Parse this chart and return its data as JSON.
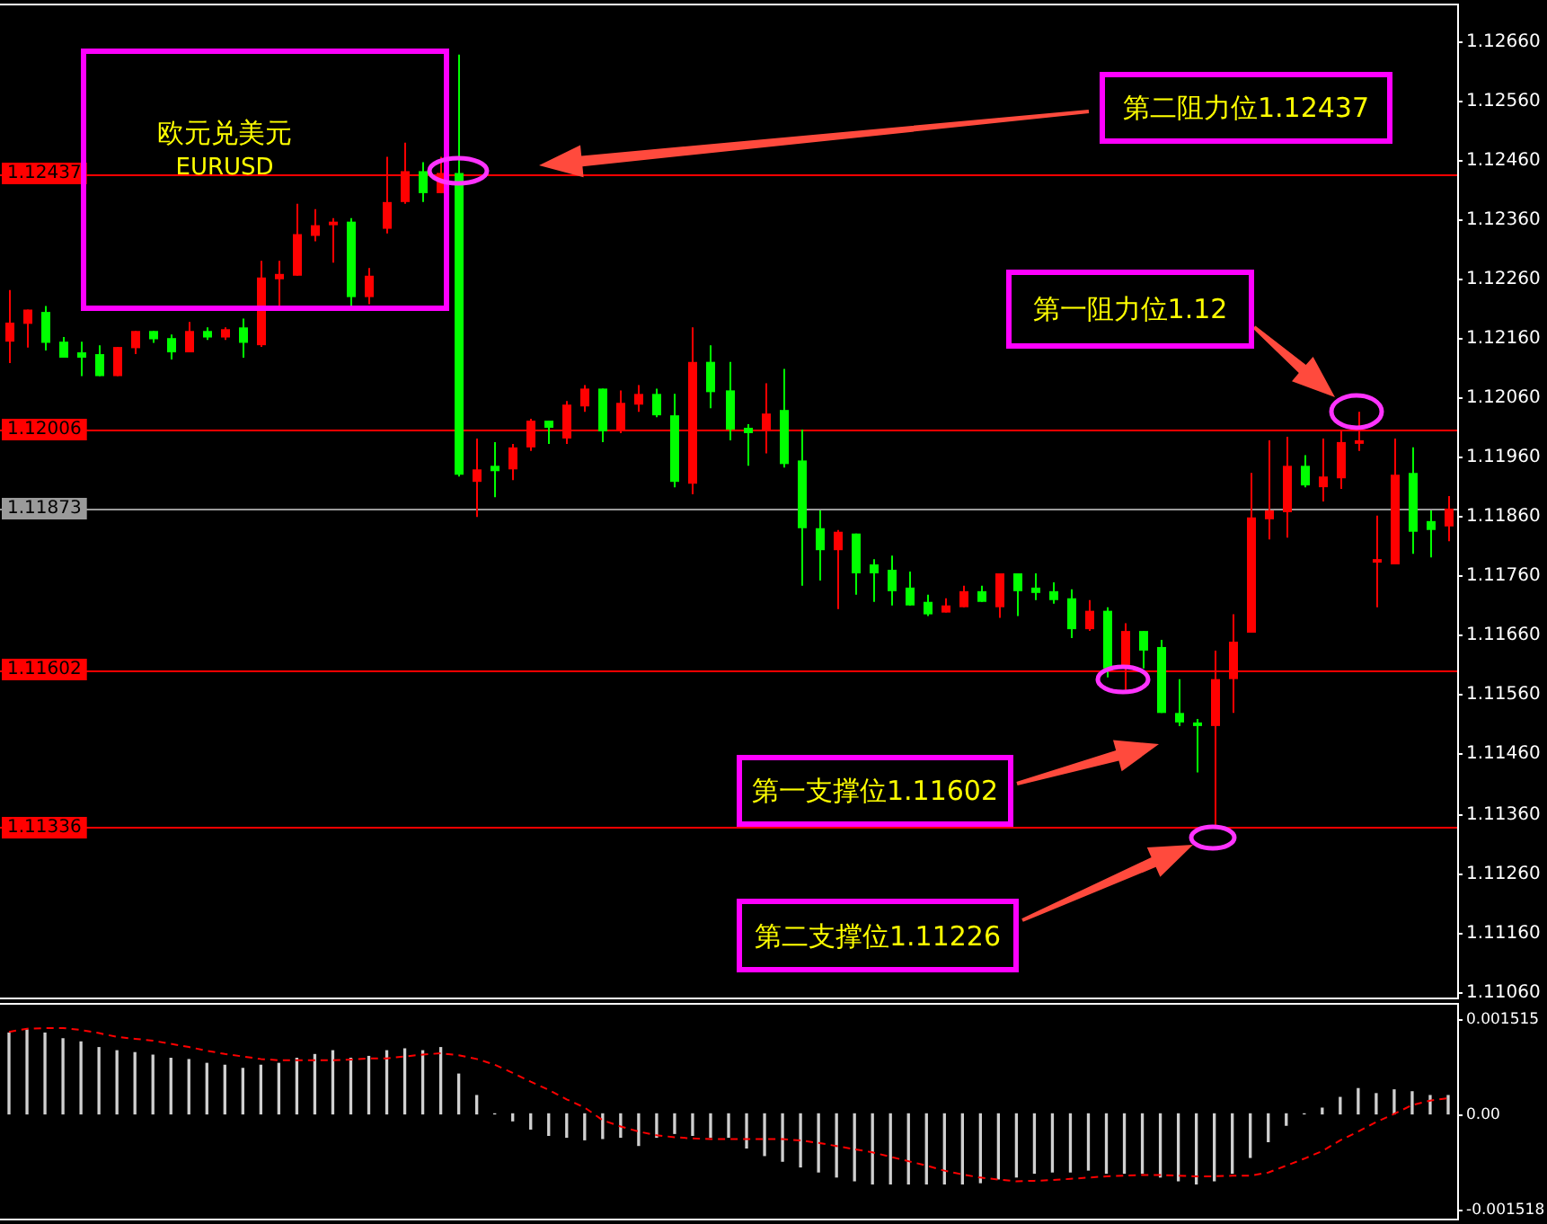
{
  "chart_data": [
    {
      "type": "candlestick",
      "title": "欧元兑美元",
      "subtitle": "EURUSD",
      "categories": [
        null,
        null,
        null,
        null,
        null,
        null,
        null,
        null,
        null,
        null,
        null,
        null,
        null,
        null,
        null,
        null,
        null,
        null,
        null,
        null,
        null,
        null,
        null,
        null,
        null,
        null,
        null,
        null,
        null,
        null,
        null,
        null,
        null,
        null,
        null,
        null,
        null,
        null,
        null,
        null,
        null,
        null,
        null,
        null,
        null,
        null,
        null,
        null,
        null,
        null,
        null,
        null,
        null,
        null,
        null,
        null,
        null,
        null,
        null,
        null,
        null,
        null,
        null,
        null,
        null,
        null,
        null,
        null,
        null,
        null,
        null,
        null,
        null,
        null,
        null,
        null,
        null,
        null,
        null,
        null,
        null
      ],
      "ohlc": [
        [
          1.12154,
          1.12241,
          1.12118,
          1.12186
        ],
        [
          1.12184,
          1.12208,
          1.12144,
          1.12208
        ],
        [
          1.12204,
          1.12214,
          1.12139,
          1.12152
        ],
        [
          1.12154,
          1.12162,
          1.12127,
          1.12127
        ],
        [
          1.12136,
          1.12154,
          1.12096,
          1.12127
        ],
        [
          1.12133,
          1.12148,
          1.12096,
          1.12096
        ],
        [
          1.12096,
          1.12145,
          1.12096,
          1.12145
        ],
        [
          1.12143,
          1.12172,
          1.12133,
          1.12172
        ],
        [
          1.12172,
          1.12172,
          1.12152,
          1.12158
        ],
        [
          1.1216,
          1.12166,
          1.12124,
          1.12136
        ],
        [
          1.12136,
          1.12187,
          1.12136,
          1.12172
        ],
        [
          1.12172,
          1.12178,
          1.12157,
          1.12161
        ],
        [
          1.12161,
          1.12178,
          1.12157,
          1.12175
        ],
        [
          1.12178,
          1.12193,
          1.12127,
          1.12152
        ],
        [
          1.12148,
          1.1229,
          1.12145,
          1.12262
        ],
        [
          1.12259,
          1.1229,
          1.12214,
          1.12268
        ],
        [
          1.12265,
          1.12386,
          1.12265,
          1.12335
        ],
        [
          1.12332,
          1.12377,
          1.12323,
          1.1235
        ],
        [
          1.1235,
          1.12362,
          1.12287,
          1.12356
        ],
        [
          1.12356,
          1.12362,
          1.12209,
          1.12229
        ],
        [
          1.12229,
          1.12278,
          1.12217,
          1.12265
        ],
        [
          1.12344,
          1.12465,
          1.12336,
          1.12389
        ],
        [
          1.12389,
          1.12489,
          1.12386,
          1.12441
        ],
        [
          1.12441,
          1.12456,
          1.12389,
          1.12404
        ],
        [
          1.12404,
          1.12465,
          1.12404,
          1.12438
        ],
        [
          1.12438,
          1.12637,
          1.11927,
          1.1193
        ],
        [
          1.11918,
          1.11991,
          1.11859,
          1.11939
        ],
        [
          1.11945,
          1.11985,
          1.11892,
          1.11936
        ],
        [
          1.11939,
          1.11982,
          1.11921,
          1.11976
        ],
        [
          1.11976,
          1.12024,
          1.1197,
          1.12021
        ],
        [
          1.12021,
          1.12021,
          1.11982,
          1.12009
        ],
        [
          1.11991,
          1.12054,
          1.11982,
          1.12048
        ],
        [
          1.12045,
          1.12081,
          1.12036,
          1.12075
        ],
        [
          1.12075,
          1.12075,
          1.11985,
          1.12003
        ],
        [
          1.12003,
          1.12072,
          1.12,
          1.12051
        ],
        [
          1.12048,
          1.12081,
          1.12036,
          1.12066
        ],
        [
          1.12066,
          1.12075,
          1.12027,
          1.1203
        ],
        [
          1.1203,
          1.12066,
          1.11909,
          1.11918
        ],
        [
          1.11915,
          1.12178,
          1.11897,
          1.1212
        ],
        [
          1.1212,
          1.12148,
          1.12042,
          1.12069
        ],
        [
          1.12072,
          1.1212,
          1.11988,
          1.12006
        ],
        [
          1.12009,
          1.12015,
          1.11945,
          1.12
        ],
        [
          1.12003,
          1.12084,
          1.11966,
          1.12033
        ],
        [
          1.12039,
          1.12108,
          1.11942,
          1.11948
        ],
        [
          1.11954,
          1.12006,
          1.11743,
          1.1184
        ],
        [
          1.1184,
          1.1187,
          1.11752,
          1.11803
        ],
        [
          1.11803,
          1.11837,
          1.11704,
          1.11834
        ],
        [
          1.11831,
          1.11831,
          1.11728,
          1.11764
        ],
        [
          1.11779,
          1.11788,
          1.11716,
          1.11764
        ],
        [
          1.1177,
          1.11794,
          1.1171,
          1.11734
        ],
        [
          1.1174,
          1.11767,
          1.1171,
          1.1171
        ],
        [
          1.11716,
          1.11728,
          1.11692,
          1.11695
        ],
        [
          1.11698,
          1.11722,
          1.11698,
          1.1171
        ],
        [
          1.11707,
          1.11743,
          1.11707,
          1.11734
        ],
        [
          1.11734,
          1.11743,
          1.11716,
          1.11716
        ],
        [
          1.11707,
          1.11764,
          1.11689,
          1.11764
        ],
        [
          1.11764,
          1.11764,
          1.11692,
          1.11734
        ],
        [
          1.1174,
          1.11764,
          1.11719,
          1.11731
        ],
        [
          1.11734,
          1.11749,
          1.11713,
          1.11719
        ],
        [
          1.11722,
          1.11737,
          1.11655,
          1.1167
        ],
        [
          1.1167,
          1.11719,
          1.11667,
          1.11701
        ],
        [
          1.11701,
          1.11707,
          1.11589,
          1.11604
        ],
        [
          1.11607,
          1.1168,
          1.11568,
          1.11667
        ],
        [
          1.11667,
          1.11667,
          1.11604,
          1.11634
        ],
        [
          1.1164,
          1.11652,
          1.11529,
          1.11529
        ],
        [
          1.11529,
          1.11586,
          1.11507,
          1.11513
        ],
        [
          1.11513,
          1.11519,
          1.11429,
          1.11507
        ],
        [
          1.11507,
          1.11634,
          1.11338,
          1.11586
        ],
        [
          1.11586,
          1.11695,
          1.11529,
          1.11649
        ],
        [
          1.11664,
          1.11933,
          1.11664,
          1.11858
        ],
        [
          1.11855,
          1.11988,
          1.11821,
          1.1187
        ],
        [
          1.11867,
          1.11994,
          1.11824,
          1.11945
        ],
        [
          1.11945,
          1.11963,
          1.11909,
          1.11912
        ],
        [
          1.11909,
          1.11991,
          1.11885,
          1.11927
        ],
        [
          1.11924,
          1.12003,
          1.11906,
          1.11985
        ],
        [
          1.11982,
          1.12036,
          1.1197,
          1.11988
        ],
        [
          1.11782,
          1.11861,
          1.11707,
          1.11788
        ],
        [
          1.11779,
          1.11991,
          1.11779,
          1.1193
        ],
        [
          1.11933,
          1.11976,
          1.11797,
          1.11834
        ],
        [
          1.11852,
          1.1187,
          1.11791,
          1.11837
        ],
        [
          1.11843,
          1.11894,
          1.11818,
          1.11873
        ]
      ],
      "colors": [
        "#ff0000",
        "#ff0000",
        "#00ff00",
        "#00ff00",
        "#00ff00",
        "#00ff00",
        "#ff0000",
        "#ff0000",
        "#00ff00",
        "#00ff00",
        "#ff0000",
        "#00ff00",
        "#ff0000",
        "#00ff00",
        "#ff0000",
        "#ff0000",
        "#ff0000",
        "#ff0000",
        "#ff0000",
        "#00ff00",
        "#ff0000",
        "#ff0000",
        "#ff0000",
        "#00ff00",
        "#ff0000",
        "#00ff00",
        "#ff0000",
        "#00ff00",
        "#ff0000",
        "#ff0000",
        "#00ff00",
        "#ff0000",
        "#ff0000",
        "#00ff00",
        "#ff0000",
        "#ff0000",
        "#00ff00",
        "#00ff00",
        "#ff0000",
        "#00ff00",
        "#00ff00",
        "#00ff00",
        "#ff0000",
        "#00ff00",
        "#00ff00",
        "#00ff00",
        "#ff0000",
        "#00ff00",
        "#00ff00",
        "#00ff00",
        "#00ff00",
        "#00ff00",
        "#ff0000",
        "#ff0000",
        "#00ff00",
        "#ff0000",
        "#00ff00",
        "#00ff00",
        "#00ff00",
        "#00ff00",
        "#ff0000",
        "#00ff00",
        "#ff0000",
        "#00ff00",
        "#00ff00",
        "#00ff00",
        "#00ff00",
        "#ff0000",
        "#ff0000",
        "#ff0000",
        "#ff0000",
        "#ff0000",
        "#00ff00",
        "#ff0000",
        "#ff0000",
        "#ff0000",
        "#ff0000",
        "#ff0000",
        "#00ff00",
        "#00ff00",
        "#ff0000"
      ],
      "ylim": [
        1.1105,
        1.1272
      ],
      "yticks": [
        {
          "value": 1.1106,
          "label": "1.11060"
        },
        {
          "value": 1.1116,
          "label": "1.11160"
        },
        {
          "value": 1.1126,
          "label": "1.11260"
        },
        {
          "value": 1.1136,
          "label": "1.11360"
        },
        {
          "value": 1.1146,
          "label": "1.11460"
        },
        {
          "value": 1.1156,
          "label": "1.11560"
        },
        {
          "value": 1.1166,
          "label": "1.11660"
        },
        {
          "value": 1.1176,
          "label": "1.11760"
        },
        {
          "value": 1.1186,
          "label": "1.11860"
        },
        {
          "value": 1.1196,
          "label": "1.11960"
        },
        {
          "value": 1.1206,
          "label": "1.12060"
        },
        {
          "value": 1.1216,
          "label": "1.12160"
        },
        {
          "value": 1.1226,
          "label": "1.12260"
        },
        {
          "value": 1.1236,
          "label": "1.12360"
        },
        {
          "value": 1.1246,
          "label": "1.12460"
        },
        {
          "value": 1.1256,
          "label": "1.12560"
        },
        {
          "value": 1.1266,
          "label": "1.12660"
        }
      ],
      "ref_lines": [
        {
          "axis": "y",
          "value": 1.12437,
          "label": "1.12437",
          "color": "#ff0000"
        },
        {
          "axis": "y",
          "value": 1.12006,
          "label": "1.12006",
          "color": "#ff0000"
        },
        {
          "axis": "y",
          "value": 1.11873,
          "label": "1.11873",
          "color": "#9a9a9a"
        },
        {
          "axis": "y",
          "value": 1.11602,
          "label": "1.11602",
          "color": "#ff0000"
        },
        {
          "axis": "y",
          "value": 1.11336,
          "label": "1.11336",
          "color": "#ff0000"
        }
      ],
      "annotations": [
        "第二阻力位1.12437",
        "第一阻力位1.12",
        "第一支撑位1.11602",
        "第二支撑位1.11226"
      ],
      "tick_labels": "y"
    },
    {
      "type": "bar",
      "categories": [
        null,
        null,
        null,
        null,
        null,
        null,
        null,
        null,
        null,
        null,
        null,
        null,
        null,
        null,
        null,
        null,
        null,
        null,
        null,
        null,
        null,
        null,
        null,
        null,
        null,
        null,
        null,
        null,
        null,
        null,
        null,
        null,
        null,
        null,
        null,
        null,
        null,
        null,
        null,
        null,
        null,
        null,
        null,
        null,
        null,
        null,
        null,
        null,
        null,
        null,
        null,
        null,
        null,
        null,
        null,
        null,
        null,
        null,
        null,
        null,
        null,
        null,
        null,
        null,
        null,
        null,
        null,
        null,
        null,
        null,
        null,
        null,
        null,
        null,
        null,
        null,
        null,
        null,
        null,
        null,
        null
      ],
      "series": [
        {
          "type": "bar",
          "color": "#d0d0d0",
          "values": [
            0.00128,
            0.00133,
            0.00128,
            0.00119,
            0.00114,
            0.00105,
            0.001,
            0.00097,
            0.00093,
            0.00088,
            0.00086,
            0.0008,
            0.00077,
            0.00072,
            0.00077,
            0.0008,
            0.00088,
            0.00094,
            0.001,
            0.00088,
            0.00091,
            0.001,
            0.00103,
            0.001,
            0.00105,
            0.00063,
            0.00029,
            0,
            -0.00011,
            -0.00024,
            -0.00034,
            -0.00037,
            -0.00041,
            -0.00039,
            -0.00037,
            -0.0005,
            -0.00037,
            -0.00031,
            -0.00034,
            -0.00037,
            -0.00037,
            -0.00054,
            -0.00066,
            -0.00075,
            -0.00084,
            -0.00092,
            -0.001,
            -0.00106,
            -0.00111,
            -0.00111,
            -0.00111,
            -0.00111,
            -0.00111,
            -0.00111,
            -0.00109,
            -0.00103,
            -0.001,
            -0.00094,
            -0.00092,
            -0.00092,
            -0.00089,
            -0.00094,
            -0.00094,
            -0.00094,
            -0.001,
            -0.00106,
            -0.00111,
            -0.00106,
            -0.00094,
            -0.00069,
            -0.00044,
            -0.00018,
            0,
            9e-05,
            0.00026,
            0.0004,
            0.00032,
            0.00038,
            0.00035,
            0.00029,
            0.00029
          ]
        },
        {
          "type": "line",
          "color": "#ff0000",
          "line_style": "dashed",
          "marker": "none",
          "values": [
            0.0013,
            0.00135,
            0.00136,
            0.00136,
            0.00133,
            0.00128,
            0.00122,
            0.00119,
            0.00116,
            0.00111,
            0.00106,
            0.001,
            0.00095,
            0.00091,
            0.00087,
            0.00085,
            0.00085,
            0.00085,
            0.00085,
            0.00086,
            0.00088,
            0.00088,
            0.00091,
            0.00094,
            0.00096,
            0.00093,
            0.00087,
            0.00078,
            0.00065,
            0.00051,
            0.00038,
            0.00023,
            0.0001,
            -0.0001,
            -0.0002,
            -0.00028,
            -0.00034,
            -0.00037,
            -0.00039,
            -0.0004,
            -0.0004,
            -0.0004,
            -0.0004,
            -0.0004,
            -0.00042,
            -0.00046,
            -0.00051,
            -0.00056,
            -0.00061,
            -0.00068,
            -0.00075,
            -0.00082,
            -0.0009,
            -0.00096,
            -0.00101,
            -0.00104,
            -0.00107,
            -0.00106,
            -0.00105,
            -0.00103,
            -0.00101,
            -0.00099,
            -0.00098,
            -0.00097,
            -0.00097,
            -0.00098,
            -0.00099,
            -0.00099,
            -0.00098,
            -0.00098,
            -0.00093,
            -0.00082,
            -0.00071,
            -0.00059,
            -0.00042,
            -0.00028,
            -0.00013,
            0,
            0.00014,
            0.00021,
            0.00025
          ]
        }
      ],
      "ylim": [
        -0.00166,
        0.00173
      ],
      "yticks": [
        0.001515,
        {
          "value": 0,
          "label": "0.00"
        },
        -0.001518
      ],
      "tick_labels": "y"
    }
  ]
}
